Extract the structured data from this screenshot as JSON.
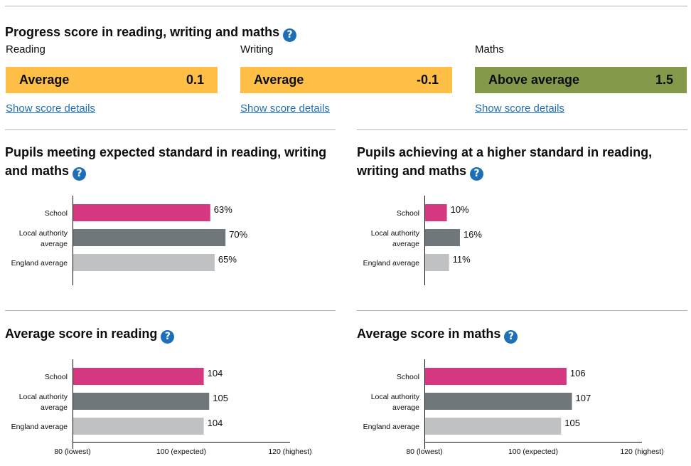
{
  "colors": {
    "school": "#d53880",
    "local_authority": "#6f777b",
    "england": "#bfc1c3",
    "average": "#ffbf47",
    "above_average": "#85994b",
    "link": "#1d70b8",
    "help_icon": "#1d70b8"
  },
  "progress": {
    "title": "Progress score in reading, writing and maths",
    "help_icon": "?",
    "subjects": [
      {
        "name": "Reading",
        "band": "Average",
        "score": "0.1",
        "link": "Show score details"
      },
      {
        "name": "Writing",
        "band": "Average",
        "score": "-0.1",
        "link": "Show score details"
      },
      {
        "name": "Maths",
        "band": "Above average",
        "score": "1.5",
        "link": "Show score details"
      }
    ]
  },
  "sections": {
    "expected": {
      "title_line1": "Pupils meeting expected standard in reading, writing",
      "title_line2": "and maths",
      "help_icon": "?"
    },
    "higher": {
      "title_line1": "Pupils achieving at a higher standard in reading,",
      "title_line2": "writing and maths",
      "help_icon": "?"
    },
    "reading": {
      "title": "Average score in reading",
      "help_icon": "?"
    },
    "maths": {
      "title": "Average score in maths",
      "help_icon": "?"
    }
  },
  "chart_data": [
    {
      "id": "expected",
      "type": "bar",
      "orientation": "horizontal",
      "title": "Pupils meeting expected standard in reading, writing and maths",
      "categories": [
        "School",
        "Local authority average",
        "England average"
      ],
      "values": [
        63,
        70,
        65
      ],
      "value_labels": [
        "63%",
        "70%",
        "65%"
      ],
      "xlim": [
        0,
        100
      ]
    },
    {
      "id": "higher",
      "type": "bar",
      "orientation": "horizontal",
      "title": "Pupils achieving at a higher standard in reading, writing and maths",
      "categories": [
        "School",
        "Local authority average",
        "England average"
      ],
      "values": [
        10,
        16,
        11
      ],
      "value_labels": [
        "10%",
        "16%",
        "11%"
      ],
      "xlim": [
        0,
        100
      ]
    },
    {
      "id": "reading",
      "type": "bar",
      "orientation": "horizontal",
      "title": "Average score in reading",
      "categories": [
        "School",
        "Local authority average",
        "England average"
      ],
      "values": [
        104,
        105,
        104
      ],
      "value_labels": [
        "104",
        "105",
        "104"
      ],
      "xlim": [
        80,
        120
      ],
      "ticks": [
        {
          "value": 80,
          "label": "80 (lowest)"
        },
        {
          "value": 100,
          "label": "100 (expected)"
        },
        {
          "value": 120,
          "label": "120 (highest)"
        }
      ]
    },
    {
      "id": "maths",
      "type": "bar",
      "orientation": "horizontal",
      "title": "Average score in maths",
      "categories": [
        "School",
        "Local authority average",
        "England average"
      ],
      "values": [
        106,
        107,
        105
      ],
      "value_labels": [
        "106",
        "107",
        "105"
      ],
      "xlim": [
        80,
        120
      ],
      "ticks": [
        {
          "value": 80,
          "label": "80 (lowest)"
        },
        {
          "value": 100,
          "label": "100 (expected)"
        },
        {
          "value": 120,
          "label": "120 (highest)"
        }
      ]
    }
  ]
}
